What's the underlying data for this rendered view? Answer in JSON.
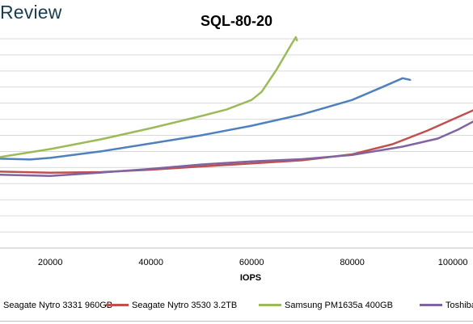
{
  "brand": {
    "text": "Review"
  },
  "chart_data": {
    "type": "line",
    "title": "SQL-80-20",
    "xlabel": "IOPS",
    "ylabel": "",
    "xlim": [
      10000,
      104000
    ],
    "ylim": [
      0,
      13.4
    ],
    "xticks": [
      20000,
      40000,
      60000,
      80000,
      100000
    ],
    "xtick_labels": [
      "20000",
      "40000",
      "60000",
      "80000",
      "100000"
    ],
    "ygrid": [
      1,
      2,
      3,
      4,
      5,
      6,
      7,
      8,
      9,
      10,
      11,
      12,
      13
    ],
    "grid": true,
    "legend_position": "bottom",
    "series": [
      {
        "name": "Seagate Nytro 3331 960GB",
        "color": "#4f81bd",
        "points": [
          [
            10000,
            5.55
          ],
          [
            16000,
            5.5
          ],
          [
            20000,
            5.6
          ],
          [
            30000,
            6.0
          ],
          [
            40000,
            6.5
          ],
          [
            50000,
            7.0
          ],
          [
            60000,
            7.6
          ],
          [
            70000,
            8.3
          ],
          [
            80000,
            9.2
          ],
          [
            86000,
            10.0
          ],
          [
            90000,
            10.55
          ],
          [
            91500,
            10.45
          ]
        ]
      },
      {
        "name": "Seagate Nytro 3530 3.2TB",
        "color": "#c0504d",
        "points": [
          [
            10000,
            4.75
          ],
          [
            20000,
            4.68
          ],
          [
            30000,
            4.72
          ],
          [
            40000,
            4.87
          ],
          [
            50000,
            5.07
          ],
          [
            60000,
            5.26
          ],
          [
            70000,
            5.45
          ],
          [
            80000,
            5.82
          ],
          [
            88000,
            6.45
          ],
          [
            95000,
            7.3
          ],
          [
            100000,
            8.0
          ],
          [
            104000,
            8.55
          ]
        ]
      },
      {
        "name": "Samsung PM1635a 400GB",
        "color": "#9bbb59",
        "points": [
          [
            10000,
            5.65
          ],
          [
            20000,
            6.15
          ],
          [
            30000,
            6.75
          ],
          [
            40000,
            7.45
          ],
          [
            50000,
            8.2
          ],
          [
            55000,
            8.6
          ],
          [
            60000,
            9.2
          ],
          [
            62000,
            9.7
          ],
          [
            65000,
            11.1
          ],
          [
            68000,
            12.7
          ],
          [
            68800,
            13.1
          ],
          [
            69000,
            12.9
          ]
        ]
      },
      {
        "name": "Toshiba",
        "color": "#8064a2",
        "points": [
          [
            10000,
            4.55
          ],
          [
            20000,
            4.48
          ],
          [
            30000,
            4.69
          ],
          [
            40000,
            4.92
          ],
          [
            50000,
            5.19
          ],
          [
            60000,
            5.38
          ],
          [
            70000,
            5.52
          ],
          [
            80000,
            5.78
          ],
          [
            90000,
            6.3
          ],
          [
            97000,
            6.8
          ],
          [
            101000,
            7.35
          ],
          [
            104000,
            7.85
          ]
        ]
      }
    ]
  }
}
